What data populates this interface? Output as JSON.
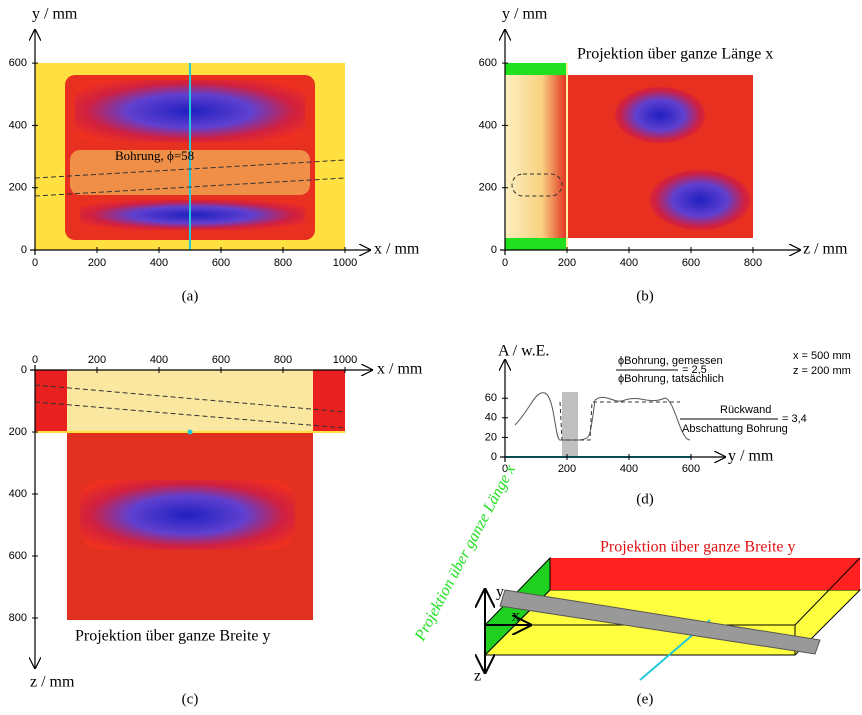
{
  "panel_a": {
    "y_label": "y / mm",
    "x_label": "x / mm",
    "annotation": "Bohrung, ϕ=58",
    "caption": "(a)",
    "xticks": [
      "0",
      "200",
      "400",
      "600",
      "800",
      "1000"
    ],
    "yticks": [
      "0",
      "200",
      "400",
      "600"
    ]
  },
  "panel_b": {
    "y_label": "y / mm",
    "x_label": "z / mm",
    "title": "Projektion über ganze Länge x",
    "caption": "(b)",
    "xticks": [
      "0",
      "200",
      "400",
      "600",
      "800"
    ],
    "yticks": [
      "0",
      "200",
      "400",
      "600"
    ]
  },
  "panel_c": {
    "y_label": "z / mm",
    "x_label": "x / mm",
    "title": "Projektion über ganze Breite y",
    "caption": "(c)",
    "xticks": [
      "0",
      "200",
      "400",
      "600",
      "800",
      "1000"
    ],
    "yticks": [
      "0",
      "200",
      "400",
      "600",
      "800"
    ]
  },
  "panel_d": {
    "y_label": "A / w.E.",
    "x_label": "y / mm",
    "params": [
      "x = 500 mm",
      "z = 200 mm"
    ],
    "diameter_measured": "ϕBohrung, gemessen",
    "diameter_actual": "ϕBohrung, tatsächlich",
    "ratio_1": "= 2,5",
    "backwall": "Rückwand",
    "shadow": "Abschattung Bohrung",
    "ratio_2": "= 3,4",
    "caption": "(d)",
    "xticks": [
      "0",
      "200",
      "400",
      "600"
    ],
    "yticks": [
      "0",
      "20",
      "40",
      "60"
    ]
  },
  "panel_e": {
    "projection_y": "Projektion über ganze Breite y",
    "projection_x": "Projektion über ganze Länge x",
    "x_label": "x",
    "y_label": "y",
    "z_label": "z",
    "caption": "(e)"
  }
}
